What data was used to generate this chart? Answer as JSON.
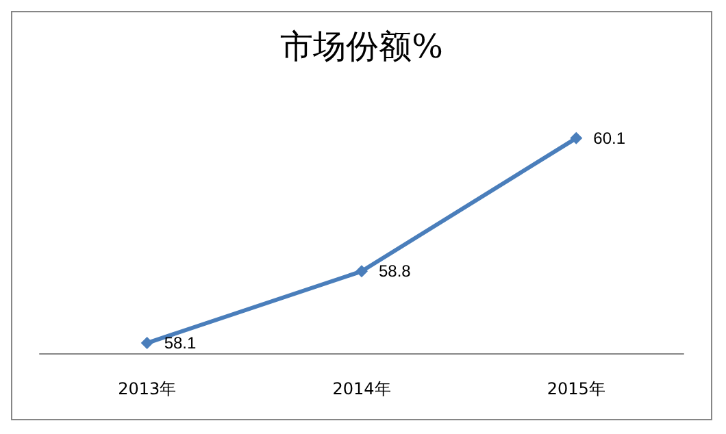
{
  "chart_data": {
    "type": "line",
    "title": "市场份额%",
    "categories": [
      "2013年",
      "2014年",
      "2015年"
    ],
    "series": [
      {
        "color": "#4a7ebb",
        "values": [
          58.1,
          58.8,
          60.1
        ]
      }
    ],
    "data_labels": true,
    "marker": "diamond",
    "line_style": "solid",
    "tick_labels": "x"
  }
}
